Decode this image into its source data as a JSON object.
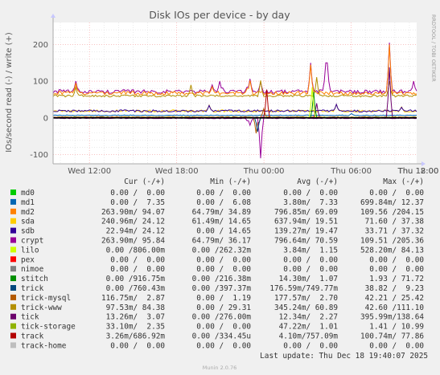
{
  "colors": {
    "background": "#f0f0f0",
    "plot_background": "#ffffff",
    "grid_major": "#ffaaaa",
    "grid_minor": "#dddddd",
    "axis": "#aaaaaa",
    "text": "#555555"
  },
  "side_label": "RRDTOOL / TOBI OETIKER",
  "footer": {
    "last_update": "Last update: Thu Dec 18 19:40:07 2025",
    "version": "Munin 2.0.76"
  },
  "legend_header": {
    "cur": "Cur (-/+)",
    "min": "Min (-/+)",
    "avg": "Avg (-/+)",
    "max": "Max (-/+)"
  },
  "legend": [
    {
      "name": "md0",
      "color": "#00cc00",
      "cur": "0.00 /  0.00",
      "min": "0.00 /  0.00",
      "avg": "0.00 /  0.00",
      "max": "0.00 /  0.00"
    },
    {
      "name": "md1",
      "color": "#0066b3",
      "cur": "0.00 /  7.35",
      "min": "0.00 /  6.08",
      "avg": "3.80m/  7.33",
      "max": "699.84m/ 12.37"
    },
    {
      "name": "md2",
      "color": "#ff8000",
      "cur": "263.90m/ 94.07",
      "min": "64.79m/ 34.89",
      "avg": "796.85m/ 69.09",
      "max": "109.56 /204.15"
    },
    {
      "name": "sda",
      "color": "#ffcc00",
      "cur": "240.96m/ 24.12",
      "min": "61.49m/ 14.65",
      "avg": "637.94m/ 19.51",
      "max": "71.60 / 37.38"
    },
    {
      "name": "sdb",
      "color": "#330099",
      "cur": "22.94m/ 24.12",
      "min": "0.00 / 14.65",
      "avg": "139.27m/ 19.47",
      "max": "33.71 / 37.32"
    },
    {
      "name": "crypt",
      "color": "#990099",
      "cur": "263.90m/ 95.84",
      "min": "64.79m/ 36.17",
      "avg": "796.64m/ 70.59",
      "max": "109.51 /205.36"
    },
    {
      "name": "lilo",
      "color": "#ccff00",
      "cur": "0.00 /806.00m",
      "min": "0.00 /262.32m",
      "avg": "3.84m/  1.15",
      "max": "528.20m/ 84.13"
    },
    {
      "name": "pex",
      "color": "#ff0000",
      "cur": "0.00 /  0.00",
      "min": "0.00 /  0.00",
      "avg": "0.00 /  0.00",
      "max": "0.00 /  0.00"
    },
    {
      "name": "nimoe",
      "color": "#808080",
      "cur": "0.00 /  0.00",
      "min": "0.00 /  0.00",
      "avg": "0.00 /  0.00",
      "max": "0.00 /  0.00"
    },
    {
      "name": "stitch",
      "color": "#008f00",
      "cur": "0.00 /916.75m",
      "min": "0.00 /216.38m",
      "avg": "14.30m/  1.07",
      "max": "1.93 / 71.72"
    },
    {
      "name": "trick",
      "color": "#00487d",
      "cur": "0.00 /760.43m",
      "min": "0.00 /397.37m",
      "avg": "176.59m/749.77m",
      "max": "38.82 /  9.23"
    },
    {
      "name": "trick-mysql",
      "color": "#b35a00",
      "cur": "116.75m/  2.87",
      "min": "0.00 /  1.19",
      "avg": "177.57m/  2.70",
      "max": "42.21 / 25.42"
    },
    {
      "name": "trick-www",
      "color": "#b38f00",
      "cur": "97.53m/ 84.38",
      "min": "0.00 / 29.31",
      "avg": "345.24m/ 60.89",
      "max": "42.60 /111.10"
    },
    {
      "name": "tick",
      "color": "#6b006b",
      "cur": "13.26m/  3.07",
      "min": "0.00 /276.00m",
      "avg": "12.34m/  2.27",
      "max": "395.99m/138.64"
    },
    {
      "name": "tick-storage",
      "color": "#8fb300",
      "cur": "33.10m/  2.35",
      "min": "0.00 /  0.00",
      "avg": "47.22m/  1.01",
      "max": "1.41 / 10.99"
    },
    {
      "name": "track",
      "color": "#b30000",
      "cur": "3.26m/686.92m",
      "min": "0.00 /334.45u",
      "avg": "4.10m/757.09m",
      "max": "100.74m/ 77.86"
    },
    {
      "name": "track-home",
      "color": "#bebebe",
      "cur": "0.00 /  0.00",
      "min": "0.00 /  0.00",
      "avg": "0.00 /  0.00",
      "max": "0.00 /  0.00"
    }
  ],
  "chart_data": {
    "type": "line",
    "title": "Disk IOs per device - by day",
    "ylabel": "IOs/second read (-) / write (+)",
    "xlabel": "",
    "ylim": [
      -125,
      260
    ],
    "yticks": [
      -100,
      0,
      100,
      200
    ],
    "ytick_labels": [
      "-100",
      "0",
      "100",
      "200"
    ],
    "x_range_hours": [
      9.5,
      34.5
    ],
    "xticks": [
      12,
      18,
      24,
      30,
      36,
      42
    ],
    "xtick_labels": [
      "Wed 12:00",
      "Wed 18:00",
      "Thu 00:00",
      "Thu 06:00",
      "Thu 12:00",
      "Thu 18:00"
    ],
    "grid": true,
    "series": [
      {
        "name": "crypt",
        "color": "#990099",
        "baseline": 72,
        "noise": 5,
        "spikes": [
          [
            11.1,
            100
          ],
          [
            12.8,
            74
          ],
          [
            20.4,
            90
          ],
          [
            21.0,
            100
          ],
          [
            23.0,
            106
          ],
          [
            23.8,
            98
          ],
          [
            27.2,
            150
          ],
          [
            28.3,
            150
          ],
          [
            32.6,
            205
          ],
          [
            34.3,
            100
          ],
          [
            41.5,
            107
          ]
        ]
      },
      {
        "name": "md2",
        "color": "#ff8000",
        "baseline": 68,
        "noise": 5,
        "spikes": [
          [
            11.1,
            95
          ],
          [
            20.4,
            85
          ],
          [
            23.0,
            102
          ],
          [
            27.2,
            145
          ],
          [
            32.6,
            200
          ],
          [
            41.5,
            104
          ]
        ]
      },
      {
        "name": "trick-www",
        "color": "#b38f00",
        "baseline": 60,
        "noise": 3,
        "spikes": [
          [
            11.1,
            84
          ],
          [
            19.0,
            90
          ],
          [
            23.8,
            102
          ],
          [
            27.6,
            111
          ],
          [
            32.6,
            100
          ]
        ]
      },
      {
        "name": "sda",
        "color": "#ffcc00",
        "baseline": 19,
        "noise": 3,
        "spikes": [
          [
            20.2,
            35
          ],
          [
            29.0,
            37
          ],
          [
            33.5,
            30
          ]
        ]
      },
      {
        "name": "sdb",
        "color": "#330099",
        "baseline": 19,
        "noise": 3,
        "spikes": [
          [
            20.2,
            34
          ],
          [
            29.0,
            37
          ],
          [
            33.5,
            29
          ]
        ]
      },
      {
        "name": "md1",
        "color": "#0066b3",
        "baseline": 7,
        "noise": 1,
        "spikes": [
          [
            30.0,
            12
          ]
        ]
      },
      {
        "name": "tick",
        "color": "#6b006b",
        "baseline": 2,
        "noise": 1,
        "spikes": [
          [
            27.6,
            40
          ],
          [
            32.6,
            138
          ]
        ]
      },
      {
        "name": "trick-mysql",
        "color": "#b35a00",
        "baseline": 2.5,
        "noise": 1,
        "spikes": [
          [
            23.5,
            -42
          ],
          [
            24.0,
            25
          ]
        ]
      },
      {
        "name": "track",
        "color": "#b30000",
        "baseline": 0.8,
        "noise": 0.5,
        "spikes": [
          [
            24.2,
            77
          ]
        ]
      },
      {
        "name": "stitch",
        "color": "#008f00",
        "baseline": 1,
        "noise": 0.5,
        "spikes": [
          [
            27.4,
            71
          ]
        ]
      },
      {
        "name": "lilo",
        "color": "#ccff00",
        "baseline": 1,
        "noise": 0.5,
        "spikes": [
          [
            27.3,
            84
          ]
        ]
      },
      {
        "name": "crypt (read)",
        "color": "#990099",
        "baseline": -1,
        "noise": 1,
        "spikes": [
          [
            23.8,
            -110
          ],
          [
            23.0,
            -20
          ]
        ]
      },
      {
        "name": "trick (read)",
        "color": "#00487d",
        "baseline": -0.2,
        "noise": 0.3,
        "spikes": [
          [
            23.6,
            -38
          ]
        ]
      }
    ]
  }
}
